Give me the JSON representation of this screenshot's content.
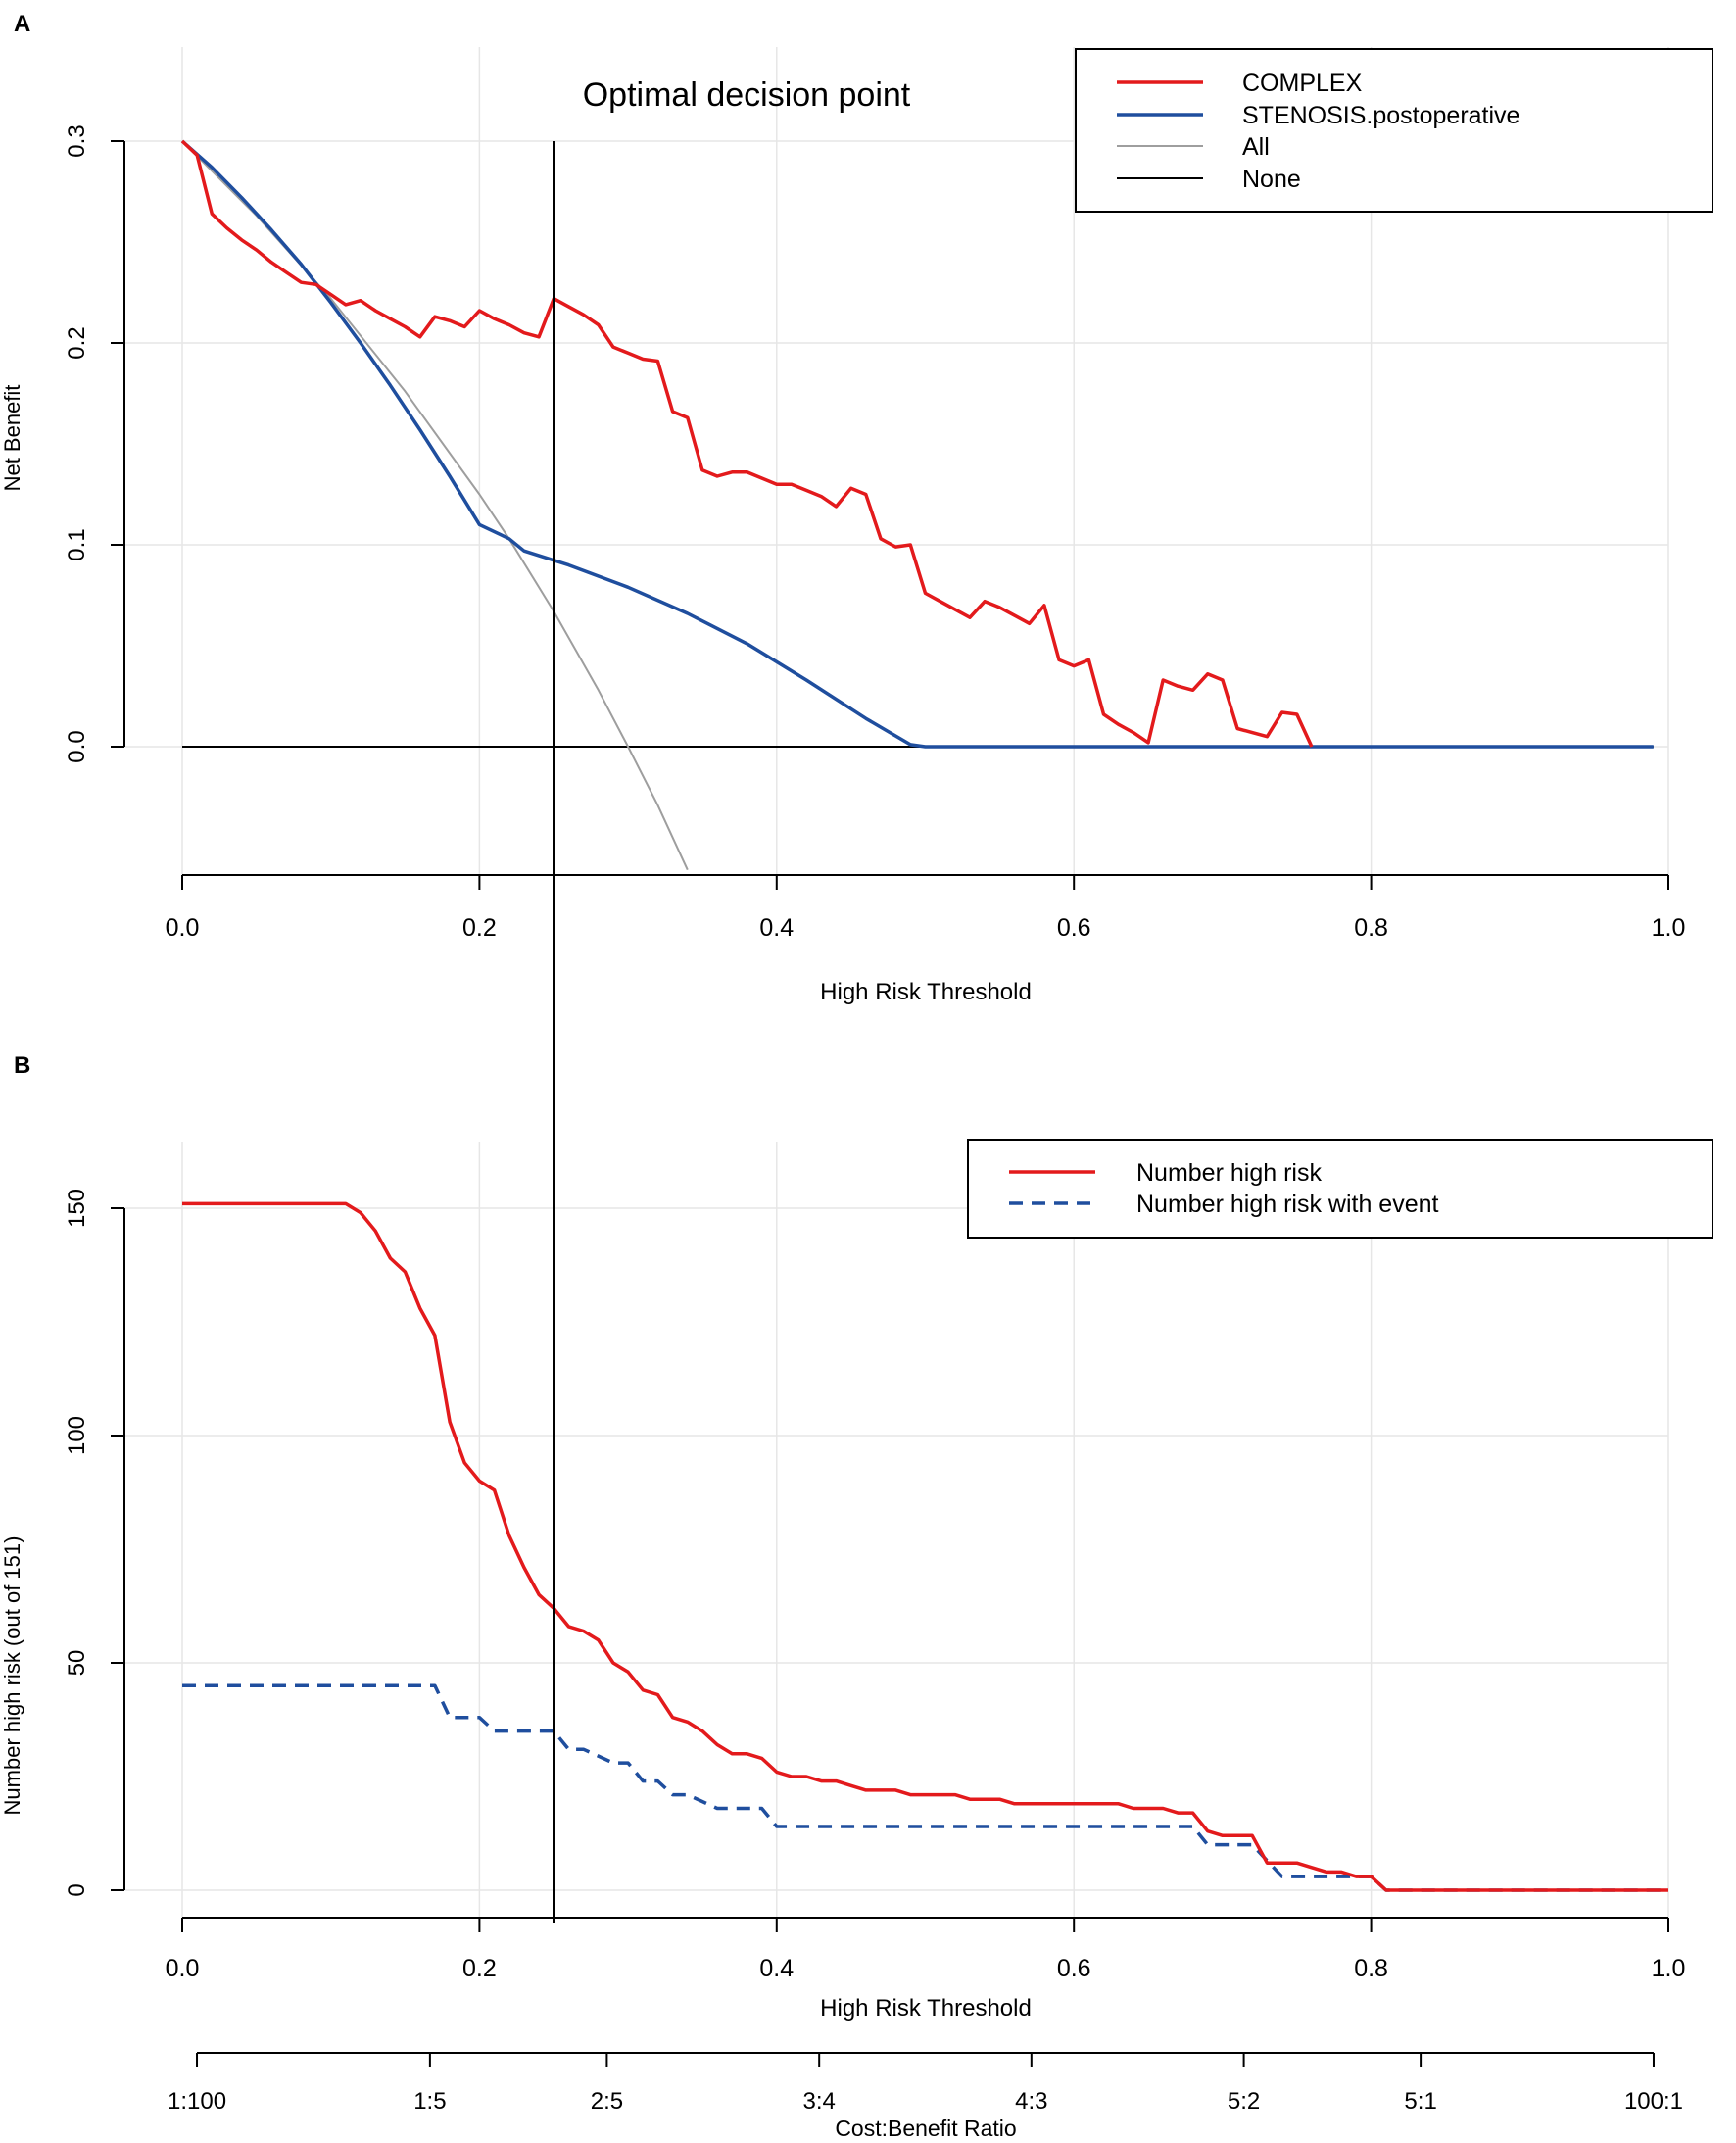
{
  "panel_labels": [
    "A",
    "B"
  ],
  "chart_data": [
    {
      "type": "line",
      "panel": "A",
      "xlabel": "High Risk Threshold",
      "ylabel": "Net Benefit",
      "annotation": "Optimal decision point",
      "xlim": [
        0,
        1
      ],
      "ylim": [
        -0.065,
        0.3
      ],
      "xticks": [
        "0.0",
        "0.2",
        "0.4",
        "0.6",
        "0.8",
        "1.0"
      ],
      "xtick_values": [
        0,
        0.2,
        0.4,
        0.6,
        0.8,
        1.0
      ],
      "yticks": [
        "0.0",
        "0.1",
        "0.2",
        "0.3"
      ],
      "ytick_values": [
        0,
        0.1,
        0.2,
        0.3
      ],
      "grid": true,
      "legend_position": "top-right",
      "vertical_line_x": 0.25,
      "series": [
        {
          "name": "COMPLEX",
          "color": "#e31a1c",
          "style": "solid",
          "x": [
            0.0,
            0.01,
            0.02,
            0.03,
            0.04,
            0.05,
            0.06,
            0.07,
            0.08,
            0.09,
            0.1,
            0.11,
            0.12,
            0.13,
            0.14,
            0.15,
            0.16,
            0.17,
            0.18,
            0.19,
            0.2,
            0.21,
            0.22,
            0.23,
            0.24,
            0.25,
            0.26,
            0.27,
            0.28,
            0.29,
            0.3,
            0.31,
            0.32,
            0.33,
            0.34,
            0.35,
            0.36,
            0.37,
            0.38,
            0.39,
            0.4,
            0.41,
            0.42,
            0.43,
            0.44,
            0.45,
            0.46,
            0.47,
            0.48,
            0.49,
            0.5,
            0.51,
            0.52,
            0.53,
            0.54,
            0.55,
            0.56,
            0.57,
            0.58,
            0.59,
            0.6,
            0.61,
            0.62,
            0.63,
            0.64,
            0.65,
            0.66,
            0.67,
            0.68,
            0.69,
            0.7,
            0.71,
            0.72,
            0.73,
            0.74,
            0.75,
            0.76
          ],
          "y": [
            0.3,
            0.293,
            0.264,
            0.257,
            0.251,
            0.246,
            0.24,
            0.235,
            0.23,
            0.229,
            0.224,
            0.219,
            0.221,
            0.216,
            0.212,
            0.208,
            0.203,
            0.213,
            0.211,
            0.208,
            0.216,
            0.212,
            0.209,
            0.205,
            0.203,
            0.222,
            0.218,
            0.214,
            0.209,
            0.198,
            0.195,
            0.192,
            0.191,
            0.166,
            0.163,
            0.137,
            0.134,
            0.136,
            0.136,
            0.133,
            0.13,
            0.13,
            0.127,
            0.124,
            0.119,
            0.128,
            0.125,
            0.103,
            0.099,
            0.1,
            0.076,
            0.072,
            0.068,
            0.064,
            0.072,
            0.069,
            0.065,
            0.061,
            0.07,
            0.043,
            0.04,
            0.043,
            0.016,
            0.011,
            0.007,
            0.002,
            0.033,
            0.03,
            0.028,
            0.036,
            0.033,
            0.009,
            0.007,
            0.005,
            0.017,
            0.016,
            0.0
          ]
        },
        {
          "name": "STENOSIS.postoperative",
          "color": "#1f4e9e",
          "style": "solid",
          "x": [
            0.0,
            0.02,
            0.04,
            0.06,
            0.08,
            0.1,
            0.12,
            0.14,
            0.16,
            0.18,
            0.2,
            0.22,
            0.23,
            0.26,
            0.3,
            0.34,
            0.38,
            0.42,
            0.46,
            0.49,
            0.5,
            0.6,
            0.7,
            0.8,
            0.9,
            0.99
          ],
          "y": [
            0.3,
            0.287,
            0.272,
            0.256,
            0.239,
            0.22,
            0.2,
            0.179,
            0.157,
            0.134,
            0.11,
            0.103,
            0.097,
            0.09,
            0.079,
            0.066,
            0.051,
            0.033,
            0.014,
            0.001,
            0.0,
            0.0,
            0.0,
            0.0,
            0.0,
            0.0
          ]
        },
        {
          "name": "All",
          "color": "#9e9e9e",
          "style": "solid",
          "x": [
            0.0,
            0.05,
            0.1,
            0.15,
            0.2,
            0.22,
            0.25,
            0.28,
            0.3,
            0.32,
            0.34
          ],
          "y": [
            0.3,
            0.263,
            0.222,
            0.176,
            0.125,
            0.103,
            0.067,
            0.028,
            0.0,
            -0.029,
            -0.061
          ]
        },
        {
          "name": "None",
          "color": "#000000",
          "style": "solid",
          "x": [
            0.0,
            0.99
          ],
          "y": [
            0.0,
            0.0
          ]
        }
      ]
    },
    {
      "type": "line",
      "panel": "B",
      "xlabel": "High Risk Threshold",
      "ylabel": "Number high risk (out of 151)",
      "xlim": [
        0,
        1
      ],
      "ylim": [
        0,
        151
      ],
      "xticks": [
        "0.0",
        "0.2",
        "0.4",
        "0.6",
        "0.8",
        "1.0"
      ],
      "xtick_values": [
        0,
        0.2,
        0.4,
        0.6,
        0.8,
        1.0
      ],
      "yticks": [
        "0",
        "50",
        "100",
        "150"
      ],
      "ytick_values": [
        0,
        50,
        100,
        150
      ],
      "grid": true,
      "legend_position": "top-right",
      "vertical_line_x": 0.25,
      "secondary_axis": {
        "label": "Cost:Benefit Ratio",
        "ticks": [
          "1:100",
          "1:5",
          "2:5",
          "3:4",
          "4:3",
          "5:2",
          "5:1",
          "100:1"
        ],
        "tick_values": [
          0.0099,
          0.1667,
          0.2857,
          0.4286,
          0.5714,
          0.7143,
          0.8333,
          0.9901
        ]
      },
      "series": [
        {
          "name": "Number high risk",
          "color": "#e31a1c",
          "style": "solid",
          "x": [
            0.0,
            0.11,
            0.12,
            0.13,
            0.14,
            0.15,
            0.16,
            0.17,
            0.18,
            0.19,
            0.2,
            0.21,
            0.22,
            0.23,
            0.24,
            0.25,
            0.26,
            0.27,
            0.28,
            0.29,
            0.3,
            0.31,
            0.32,
            0.33,
            0.34,
            0.35,
            0.36,
            0.37,
            0.38,
            0.39,
            0.4,
            0.41,
            0.42,
            0.43,
            0.44,
            0.45,
            0.46,
            0.47,
            0.48,
            0.49,
            0.5,
            0.51,
            0.52,
            0.53,
            0.54,
            0.55,
            0.56,
            0.57,
            0.58,
            0.59,
            0.6,
            0.61,
            0.62,
            0.63,
            0.64,
            0.65,
            0.66,
            0.67,
            0.68,
            0.69,
            0.7,
            0.71,
            0.72,
            0.73,
            0.74,
            0.75,
            0.76,
            0.77,
            0.78,
            0.79,
            0.8,
            0.81,
            0.82,
            0.9,
            1.0
          ],
          "y": [
            151,
            151,
            149,
            145,
            139,
            136,
            128,
            122,
            103,
            94,
            90,
            88,
            78,
            71,
            65,
            62,
            58,
            57,
            55,
            50,
            48,
            44,
            43,
            38,
            37,
            35,
            32,
            30,
            30,
            29,
            26,
            25,
            25,
            24,
            24,
            23,
            22,
            22,
            22,
            21,
            21,
            21,
            21,
            20,
            20,
            20,
            19,
            19,
            19,
            19,
            19,
            19,
            19,
            19,
            18,
            18,
            18,
            17,
            17,
            13,
            12,
            12,
            12,
            6,
            6,
            6,
            5,
            4,
            4,
            3,
            3,
            0,
            0,
            0,
            0
          ]
        },
        {
          "name": "Number high risk with event",
          "color": "#1f4e9e",
          "style": "dashed",
          "x": [
            0.0,
            0.17,
            0.18,
            0.2,
            0.21,
            0.22,
            0.24,
            0.25,
            0.26,
            0.27,
            0.29,
            0.3,
            0.31,
            0.32,
            0.33,
            0.34,
            0.36,
            0.37,
            0.39,
            0.4,
            0.68,
            0.69,
            0.72,
            0.74,
            0.8,
            0.81,
            1.0
          ],
          "y": [
            45,
            45,
            38,
            38,
            35,
            35,
            35,
            35,
            31,
            31,
            28,
            28,
            24,
            24,
            21,
            21,
            18,
            18,
            18,
            14,
            14,
            10,
            10,
            3,
            3,
            0,
            0
          ]
        }
      ]
    }
  ]
}
